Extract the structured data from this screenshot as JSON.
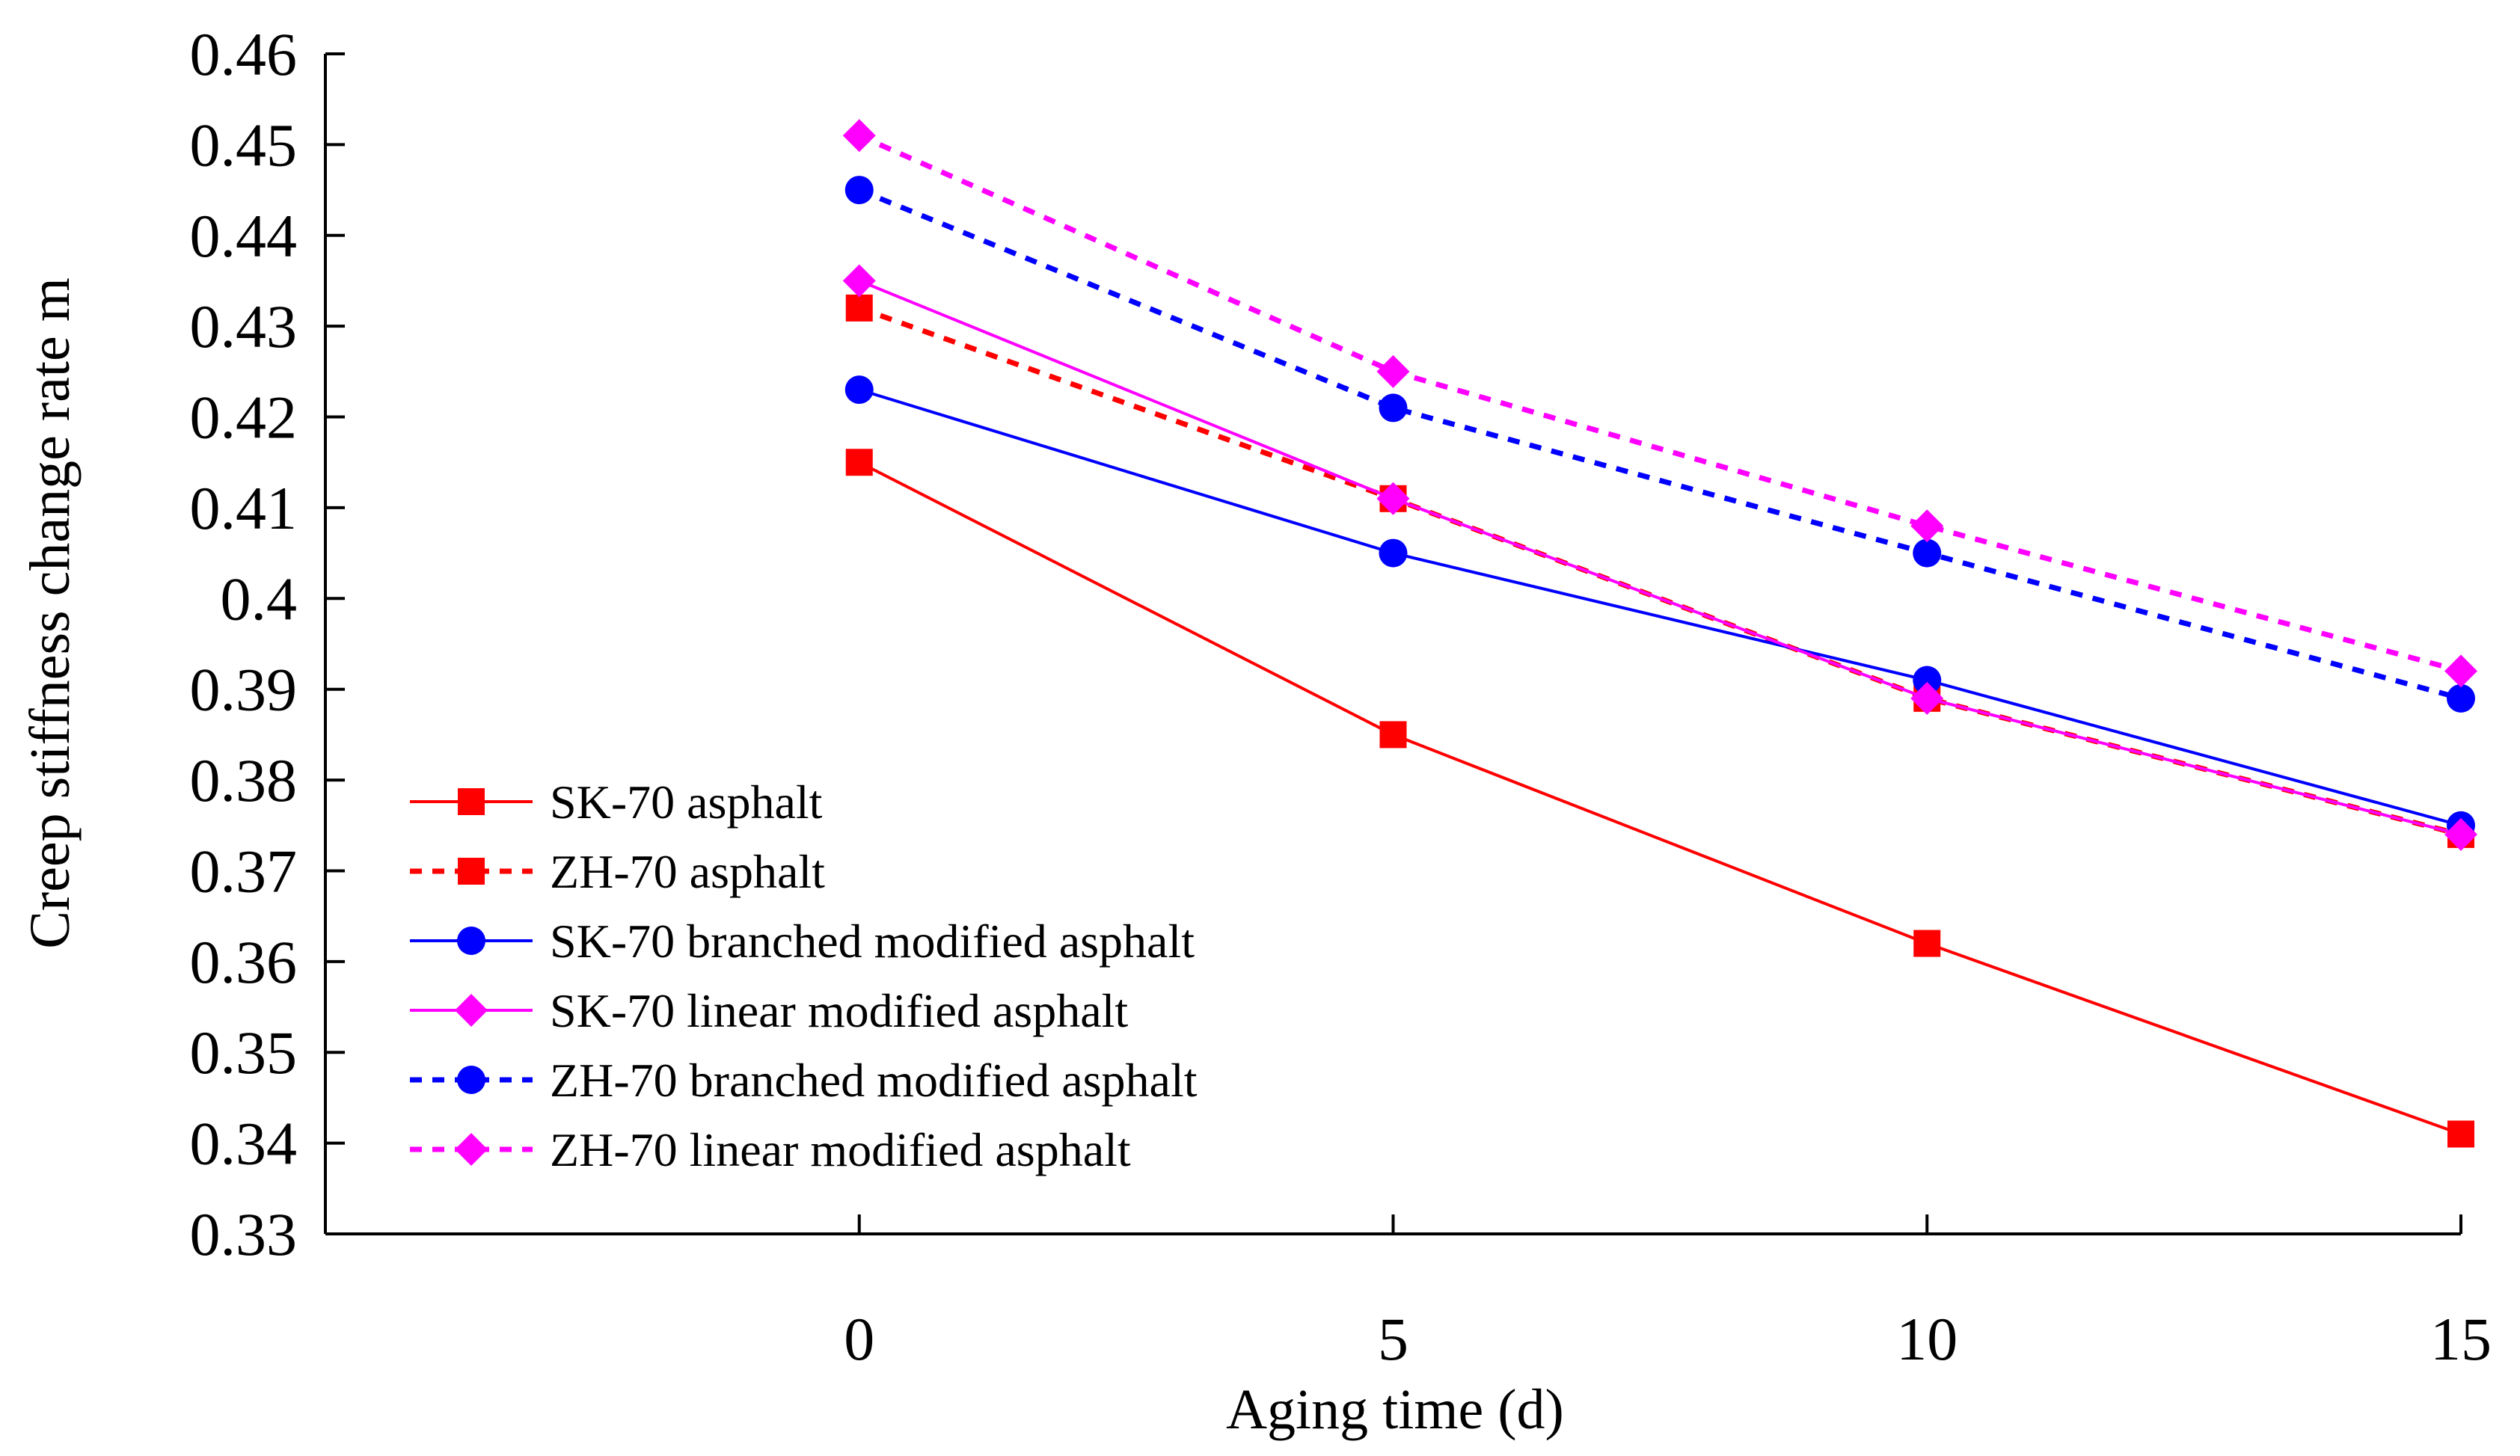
{
  "chart_data": {
    "type": "line",
    "title": "",
    "xlabel": "Aging time (d)",
    "ylabel": "Creep stiffness change rate m",
    "x": [
      0,
      5,
      10,
      15
    ],
    "xlim": [
      -5,
      15
    ],
    "ylim": [
      0.33,
      0.46
    ],
    "x_ticks": [
      "0",
      "5",
      "10",
      "15"
    ],
    "y_ticks": [
      "0.33",
      "0.34",
      "0.35",
      "0.36",
      "0.37",
      "0.38",
      "0.39",
      "0.4",
      "0.41",
      "0.42",
      "0.43",
      "0.44",
      "0.45",
      "0.46"
    ],
    "grid": false,
    "legend_position": "bottom-left",
    "series": [
      {
        "name": "SK-70 asphalt",
        "values": [
          0.415,
          0.385,
          0.362,
          0.341
        ],
        "color": "#ff0000",
        "dash": "solid",
        "marker": "square"
      },
      {
        "name": "ZH-70 asphalt",
        "values": [
          0.432,
          0.411,
          0.389,
          0.374
        ],
        "color": "#ff0000",
        "dash": "dashed",
        "marker": "square"
      },
      {
        "name": "SK-70 branched modified asphalt",
        "values": [
          0.423,
          0.405,
          0.391,
          0.375
        ],
        "color": "#0000ff",
        "dash": "solid",
        "marker": "circle"
      },
      {
        "name": "SK-70 linear modified asphalt",
        "values": [
          0.435,
          0.411,
          0.389,
          0.374
        ],
        "color": "#ff00ff",
        "dash": "solid",
        "marker": "diamond"
      },
      {
        "name": "ZH-70 branched modified asphalt",
        "values": [
          0.445,
          0.421,
          0.405,
          0.389
        ],
        "color": "#0000ff",
        "dash": "dashed",
        "marker": "circle"
      },
      {
        "name": "ZH-70 linear modified asphalt",
        "values": [
          0.451,
          0.425,
          0.408,
          0.392
        ],
        "color": "#ff00ff",
        "dash": "dashed",
        "marker": "diamond"
      }
    ]
  }
}
